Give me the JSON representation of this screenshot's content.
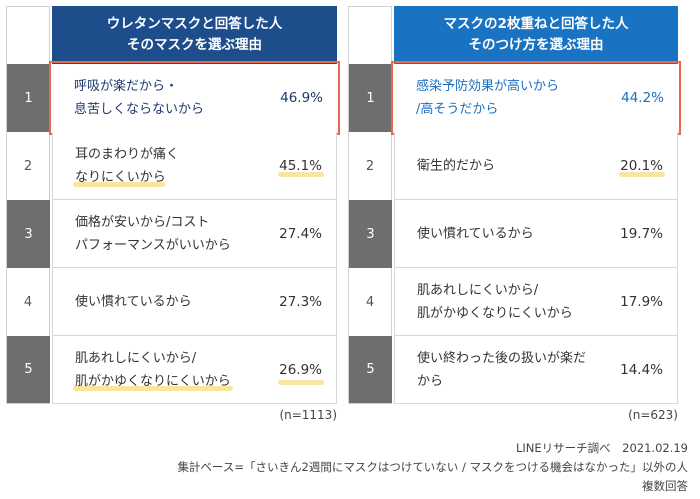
{
  "chart_data": [
    {
      "type": "table",
      "title_lines": [
        "ウレタンマスクと回答した人",
        "そのマスクを選ぶ理由"
      ],
      "header_color": "#1e4d8c",
      "highlight_text_color": "#1e3a6e",
      "rows": [
        {
          "rank": "1",
          "reason_lines": [
            "呼吸が楽だから・",
            "息苦しくならないから"
          ],
          "value": "46.9%"
        },
        {
          "rank": "2",
          "reason_lines": [
            "耳のまわりが痛く",
            "なりにくいから"
          ],
          "value": "45.1%"
        },
        {
          "rank": "3",
          "reason_lines": [
            "価格が安いから/コスト",
            "パフォーマンスがいいから"
          ],
          "value": "27.4%"
        },
        {
          "rank": "4",
          "reason_lines": [
            "使い慣れているから"
          ],
          "value": "27.3%"
        },
        {
          "rank": "5",
          "reason_lines": [
            "肌あれしにくいから/",
            "肌がかゆくなりにくいから"
          ],
          "value": "26.9%"
        }
      ],
      "n_label": "(n=1113)"
    },
    {
      "type": "table",
      "title_lines": [
        "マスクの2枚重ねと回答した人",
        "そのつけ方を選ぶ理由"
      ],
      "header_color": "#1a73c2",
      "highlight_text_color": "#1a6fc0",
      "rows": [
        {
          "rank": "1",
          "reason_lines": [
            "感染予防効果が高いから",
            "/高そうだから"
          ],
          "value": "44.2%"
        },
        {
          "rank": "2",
          "reason_lines": [
            "衛生的だから"
          ],
          "value": "20.1%"
        },
        {
          "rank": "3",
          "reason_lines": [
            "使い慣れているから"
          ],
          "value": "19.7%"
        },
        {
          "rank": "4",
          "reason_lines": [
            "肌あれしにくいから/",
            "肌がかゆくなりにくいから"
          ],
          "value": "17.9%"
        },
        {
          "rank": "5",
          "reason_lines": [
            "使い終わった後の扱いが楽だ",
            "から"
          ],
          "value": "14.4%"
        }
      ],
      "n_label": "(n=623)"
    }
  ],
  "footer": {
    "source": "LINEリサーチ調べ　2021.02.19",
    "base": "集計ベース=「さいきん2週間にマスクはつけていない / マスクをつける機会はなかった」以外の人",
    "note": "複数回答"
  }
}
